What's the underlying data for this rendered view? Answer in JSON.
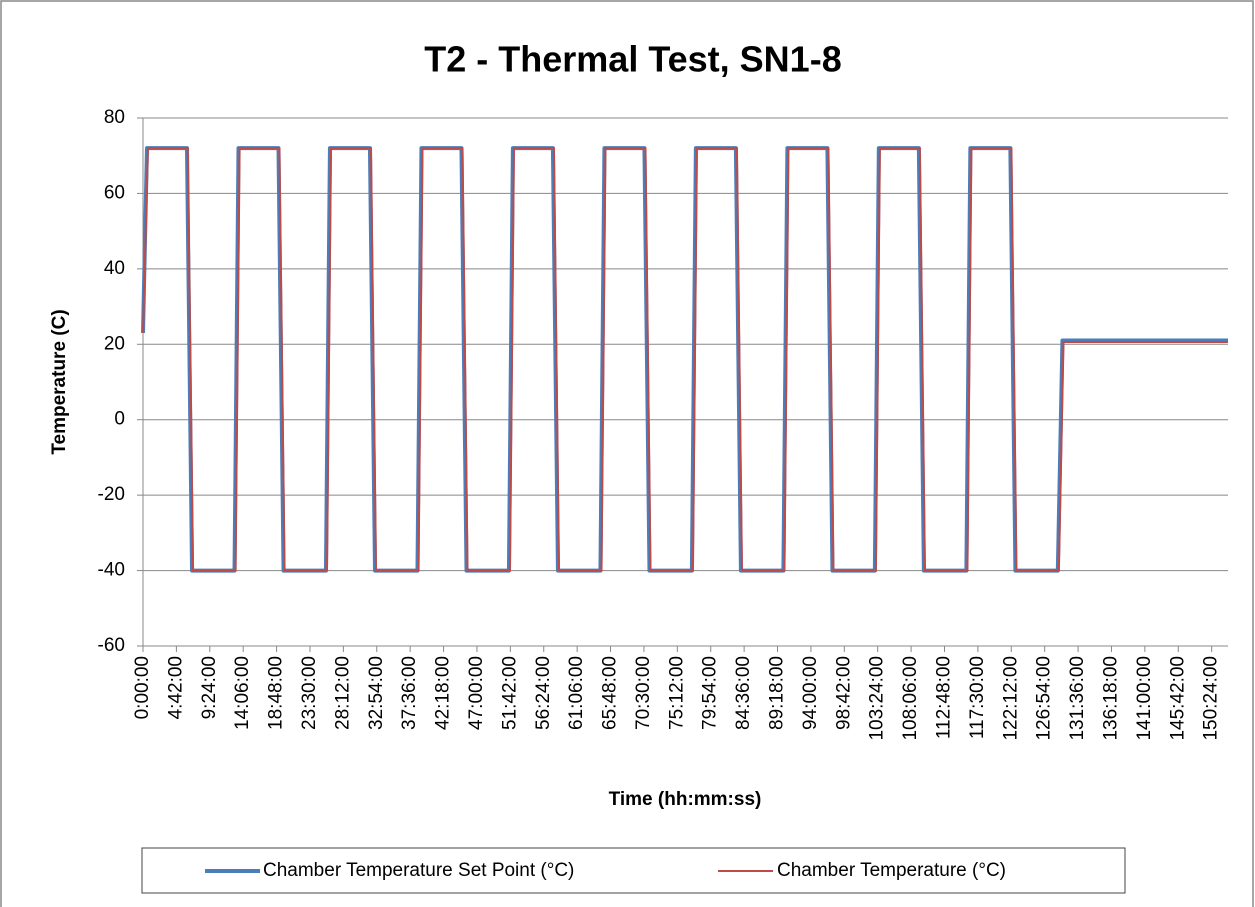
{
  "chart_data": {
    "type": "line",
    "title": "T2 - Thermal Test, SN1-8",
    "x_label": "Time (hh:mm:ss)",
    "y_label": "Temperature (C)",
    "xlim": [
      0,
      152.7
    ],
    "ylim": [
      -60,
      80
    ],
    "yticks": [
      -60,
      -40,
      -20,
      0,
      20,
      40,
      60,
      80
    ],
    "xticks": [
      {
        "value": 0,
        "label": "0:00:00"
      },
      {
        "value": 4.7,
        "label": "4:42:00"
      },
      {
        "value": 9.4,
        "label": "9:24:00"
      },
      {
        "value": 14.1,
        "label": "14:06:00"
      },
      {
        "value": 18.8,
        "label": "18:48:00"
      },
      {
        "value": 23.5,
        "label": "23:30:00"
      },
      {
        "value": 28.2,
        "label": "28:12:00"
      },
      {
        "value": 32.9,
        "label": "32:54:00"
      },
      {
        "value": 37.6,
        "label": "37:36:00"
      },
      {
        "value": 42.3,
        "label": "42:18:00"
      },
      {
        "value": 47,
        "label": "47:00:00"
      },
      {
        "value": 51.7,
        "label": "51:42:00"
      },
      {
        "value": 56.4,
        "label": "56:24:00"
      },
      {
        "value": 61.1,
        "label": "61:06:00"
      },
      {
        "value": 65.8,
        "label": "65:48:00"
      },
      {
        "value": 70.5,
        "label": "70:30:00"
      },
      {
        "value": 75.2,
        "label": "75:12:00"
      },
      {
        "value": 79.9,
        "label": "79:54:00"
      },
      {
        "value": 84.6,
        "label": "84:36:00"
      },
      {
        "value": 89.3,
        "label": "89:18:00"
      },
      {
        "value": 94,
        "label": "94:00:00"
      },
      {
        "value": 98.7,
        "label": "98:42:00"
      },
      {
        "value": 103.4,
        "label": "103:24:00"
      },
      {
        "value": 108.1,
        "label": "108:06:00"
      },
      {
        "value": 112.8,
        "label": "112:48:00"
      },
      {
        "value": 117.5,
        "label": "117:30:00"
      },
      {
        "value": 122.2,
        "label": "122:12:00"
      },
      {
        "value": 126.9,
        "label": "126:54:00"
      },
      {
        "value": 131.6,
        "label": "131:36:00"
      },
      {
        "value": 136.3,
        "label": "136:18:00"
      },
      {
        "value": 141,
        "label": "141:00:00"
      },
      {
        "value": 145.7,
        "label": "145:42:00"
      },
      {
        "value": 150.4,
        "label": "150:24:00"
      }
    ],
    "grid": true,
    "legend": "bottom",
    "series": [
      {
        "name": "Chamber Temperature Set Point (°C)",
        "color": "#4a7ebb",
        "width": 4,
        "x": [
          0,
          0.56,
          6.19,
          6.9,
          12.88,
          13.44,
          19.07,
          19.78,
          25.75,
          26.31,
          31.94,
          32.65,
          38.63,
          39.19,
          44.82,
          45.53,
          51.5,
          52.06,
          57.69,
          58.4,
          64.38,
          64.94,
          70.57,
          71.28,
          77.25,
          77.81,
          83.44,
          84.15,
          90.13,
          90.69,
          96.32,
          97.03,
          103,
          103.56,
          109.19,
          109.9,
          115.88,
          116.44,
          122.07,
          122.78,
          128.75,
          129.4,
          152.7
        ],
        "values": [
          23,
          72,
          72,
          -40,
          -40,
          72,
          72,
          -40,
          -40,
          72,
          72,
          -40,
          -40,
          72,
          72,
          -40,
          -40,
          72,
          72,
          -40,
          -40,
          72,
          72,
          -40,
          -40,
          72,
          72,
          -40,
          -40,
          72,
          72,
          -40,
          -40,
          72,
          72,
          -40,
          -40,
          72,
          72,
          -40,
          -40,
          21,
          21
        ]
      },
      {
        "name": "Chamber Temperature (°C)",
        "color": "#be4b48",
        "width": 2,
        "x": [
          0,
          0.7,
          6.3,
          7.05,
          13.03,
          13.6,
          19.2,
          19.93,
          25.9,
          26.46,
          32.09,
          32.8,
          38.78,
          39.34,
          44.97,
          45.68,
          51.65,
          52.21,
          57.84,
          58.55,
          64.53,
          65.09,
          70.72,
          71.43,
          77.4,
          77.96,
          83.59,
          84.3,
          90.28,
          90.84,
          96.47,
          97.18,
          103.15,
          103.71,
          109.34,
          110.05,
          116.03,
          116.59,
          122.22,
          122.93,
          128.9,
          129.55,
          152.7
        ],
        "values": [
          23,
          72,
          72,
          -40,
          -40,
          72,
          72,
          -40,
          -40,
          72,
          72,
          -40,
          -40,
          72,
          72,
          -40,
          -40,
          72,
          72,
          -40,
          -40,
          72,
          72,
          -40,
          -40,
          72,
          72,
          -40,
          -40,
          72,
          72,
          -40,
          -40,
          72,
          72,
          -40,
          -40,
          72,
          72,
          -40,
          -40,
          20.6,
          20.6
        ]
      }
    ]
  }
}
